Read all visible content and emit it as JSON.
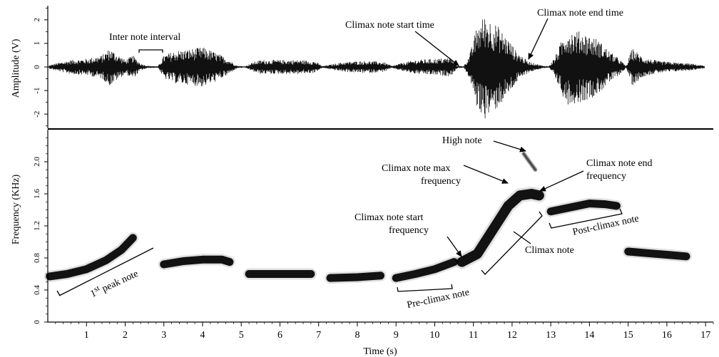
{
  "chart_data": [
    {
      "type": "line",
      "panel": "waveform",
      "ylabel": "Amplitude (V)",
      "xlabel": "",
      "xlim": [
        0,
        17.2
      ],
      "ylim": [
        -2.6,
        2.6
      ],
      "yticks": [
        "-2",
        "-1",
        "0",
        "1",
        "2"
      ],
      "ytick_values": [
        -2,
        -1,
        0,
        1,
        2
      ],
      "envelope": {
        "name": "amplitude",
        "x": [
          0.0,
          0.2,
          0.6,
          1.0,
          1.4,
          1.6,
          1.8,
          2.0,
          2.2,
          2.4,
          2.6,
          2.85,
          3.0,
          3.3,
          3.6,
          4.0,
          4.3,
          4.6,
          4.9,
          5.1,
          5.3,
          5.5,
          6.0,
          6.5,
          6.9,
          7.1,
          7.3,
          7.6,
          8.0,
          8.4,
          8.7,
          8.9,
          9.1,
          9.5,
          10.0,
          10.4,
          10.6,
          10.75,
          10.9,
          11.1,
          11.3,
          11.6,
          11.9,
          12.1,
          12.4,
          12.8,
          12.95,
          13.1,
          13.4,
          13.8,
          14.2,
          14.5,
          14.8,
          14.95,
          15.1,
          15.4,
          15.8,
          16.2,
          16.6,
          17.0
        ],
        "y": [
          0.05,
          0.15,
          0.3,
          0.35,
          0.5,
          0.8,
          0.55,
          0.3,
          0.5,
          0.15,
          0.05,
          0.03,
          0.5,
          0.7,
          0.75,
          0.85,
          0.65,
          0.4,
          0.05,
          0.03,
          0.2,
          0.3,
          0.3,
          0.3,
          0.25,
          0.04,
          0.1,
          0.2,
          0.25,
          0.25,
          0.2,
          0.04,
          0.15,
          0.3,
          0.35,
          0.4,
          0.05,
          0.04,
          0.5,
          1.8,
          2.2,
          1.8,
          1.2,
          0.7,
          0.25,
          0.05,
          0.04,
          0.4,
          1.6,
          1.5,
          1.2,
          0.7,
          0.3,
          0.04,
          0.8,
          0.4,
          0.25,
          0.2,
          0.15,
          0.05
        ]
      }
    },
    {
      "type": "scatter",
      "panel": "spectrogram",
      "ylabel": "Frequency (KHz)",
      "xlabel": "Time (s)",
      "xlim": [
        0,
        17.2
      ],
      "ylim": [
        0,
        2.4
      ],
      "xticks": [
        "1",
        "2",
        "3",
        "4",
        "5",
        "6",
        "7",
        "8",
        "9",
        "10",
        "11",
        "12",
        "13",
        "14",
        "15",
        "16",
        "17"
      ],
      "xtick_values": [
        1,
        2,
        3,
        4,
        5,
        6,
        7,
        8,
        9,
        10,
        11,
        12,
        13,
        14,
        15,
        16,
        17
      ],
      "yticks": [
        "0",
        "0.4",
        "0.8",
        "1.2",
        "1.6",
        "2.0"
      ],
      "ytick_values": [
        0,
        0.4,
        0.8,
        1.2,
        1.6,
        2.0
      ],
      "series": [
        {
          "x": [
            0.05,
            0.5,
            1.0,
            1.5,
            1.9,
            2.2
          ],
          "y": [
            0.57,
            0.6,
            0.66,
            0.77,
            0.9,
            1.05
          ]
        },
        {
          "x": [
            3.0,
            3.5,
            4.0,
            4.5,
            4.7
          ],
          "y": [
            0.72,
            0.76,
            0.78,
            0.78,
            0.75
          ]
        },
        {
          "x": [
            5.2,
            6.0,
            6.8
          ],
          "y": [
            0.6,
            0.6,
            0.6
          ]
        },
        {
          "x": [
            7.3,
            8.0,
            8.6
          ],
          "y": [
            0.55,
            0.56,
            0.58
          ]
        },
        {
          "x": [
            9.0,
            9.5,
            10.0,
            10.5
          ],
          "y": [
            0.55,
            0.6,
            0.66,
            0.75
          ]
        },
        {
          "x": [
            10.7,
            11.1,
            11.5,
            11.9,
            12.2,
            12.5,
            12.7
          ],
          "y": [
            0.75,
            0.85,
            1.15,
            1.45,
            1.58,
            1.6,
            1.58
          ]
        },
        {
          "x": [
            12.3,
            12.45,
            12.6
          ],
          "y": [
            2.1,
            2.0,
            1.9
          ]
        },
        {
          "x": [
            13.0,
            13.5,
            14.0,
            14.4,
            14.7
          ],
          "y": [
            1.38,
            1.43,
            1.48,
            1.47,
            1.45
          ]
        },
        {
          "x": [
            15.0,
            15.5,
            16.0,
            16.5
          ],
          "y": [
            0.88,
            0.86,
            0.84,
            0.82
          ]
        }
      ],
      "annotations": {
        "inter_note_interval": "Inter note interval",
        "climax_start_time": "Climax note start time",
        "climax_end_time": "Climax note end time",
        "high_note": "High note",
        "climax_max_freq_1": "Climax note max",
        "climax_max_freq_2": "frequency",
        "climax_end_freq_1": "Climax note end",
        "climax_end_freq_2": "frequency",
        "climax_start_freq_1": "Climax note start",
        "climax_start_freq_2": "frequency",
        "climax_note": "Climax note",
        "post_climax_note": "Post-climax note",
        "pre_climax_note": "Pre-climax note",
        "first_peak_note_main": "1",
        "first_peak_note_sup": "st",
        "first_peak_note_rest": " peak note"
      }
    }
  ]
}
